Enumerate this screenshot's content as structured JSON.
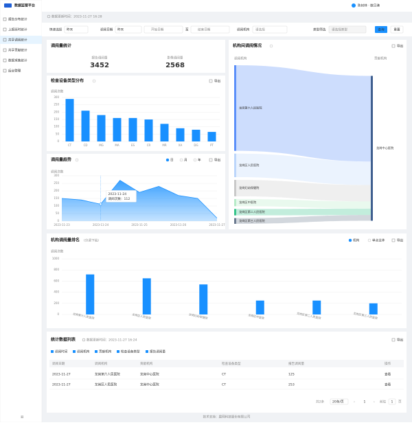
{
  "sidebar": {
    "logo": "数据监管平台",
    "menu": [
      "报告分布统计",
      "上报延时统计",
      "共享调阅统计",
      "共享贡献统计",
      "数据采集统计",
      "后台管理"
    ],
    "active": 2
  },
  "topbar": {
    "user": "陈树林 · 数日港",
    "update_time": "数据更新时间：2023-11-27 16:28"
  },
  "filters": {
    "quick_label": "快速选择",
    "quick_value": "昨天",
    "date_label": "调阅日期",
    "date_value": "昨天",
    "start_placeholder": "开始日期",
    "to": "至",
    "end_placeholder": "结束日期",
    "org_label": "调阅机构",
    "org_placeholder": "请选择",
    "type_label": "类型筛选",
    "type_placeholder": "请选择类型",
    "query": "查询",
    "reset": "重置"
  },
  "summary": {
    "title": "调阅量统计",
    "items": [
      {
        "label": "报告调阅量",
        "value": 3452
      },
      {
        "label": "影像调阅量",
        "value": 2568
      }
    ]
  },
  "chart_data": [
    {
      "type": "bar",
      "title": "检查设备类型分布",
      "export": "导出",
      "y_label": "调阅次数",
      "categories": [
        "CT",
        "CD",
        "MG",
        "MA",
        "ES",
        "CR",
        "MR",
        "XA",
        "DG",
        "PT"
      ],
      "values": [
        290,
        210,
        180,
        160,
        160,
        150,
        120,
        90,
        80,
        65
      ],
      "color": "#1890ff",
      "ylim": [
        0,
        300
      ],
      "yticks": [
        0,
        50,
        100,
        150,
        200,
        250,
        300
      ],
      "grid": true
    },
    {
      "type": "area",
      "title": "调阅量趋势",
      "options": [
        "日",
        "月",
        "年"
      ],
      "export": "导出",
      "y_label": "调阅次数",
      "categories": [
        "2023-11-23",
        null,
        "2023-11-24",
        null,
        "2023-11-25",
        null,
        "2023-11-26",
        null,
        "2023-11-27"
      ],
      "values": [
        150,
        140,
        112,
        270,
        190,
        230,
        170,
        150,
        20
      ],
      "color": "#1890ff",
      "ylim": [
        0,
        300
      ],
      "yticks": [
        0,
        50,
        100,
        150,
        200,
        250,
        300
      ],
      "grid": true,
      "tooltip": {
        "index": 2,
        "date": "2023-11-24",
        "text": "调阅次数：112"
      }
    },
    {
      "type": "sankey",
      "title": "机构间调阅情况",
      "export": "导出",
      "left_label": "调阅机构",
      "right_label": "贡献机构",
      "target": "龙岗中心医院",
      "sources": [
        "龙岗第六人民医院",
        "龙岗区人民医院",
        "龙岗妇幼保健院",
        "龙岗区中医院",
        "龙岗区第二人民医院",
        "龙岗区第三人民医院"
      ],
      "values": [
        1200,
        330,
        230,
        100,
        90,
        80
      ],
      "colors": [
        "#5b8ff9",
        "#bcd6fb",
        "#c9c9c9",
        "#b7ebc8",
        "#36c48a",
        "#6b7a8f"
      ]
    },
    {
      "type": "bar",
      "title": "机构调阅量排名",
      "subtitle": "(分调下钻)",
      "options": [
        "机构",
        "单点主体"
      ],
      "export": "导出",
      "y_label": "调阅次数",
      "categories": [
        "龙岗第六人民医院",
        "龙岗区人民医院",
        "龙岗妇幼保健院",
        "龙岗区中医院",
        "龙岗区第二人民医院",
        "龙岗区第三人民医院"
      ],
      "values": [
        720,
        650,
        540,
        250,
        250,
        200
      ],
      "color": "#1890ff",
      "ylim": [
        0,
        1000
      ],
      "yticks": [
        0,
        200,
        400,
        600,
        800,
        1000
      ],
      "grid": true
    }
  ],
  "table": {
    "title": "统计数据列表",
    "update_time": "数据更新时间：2023-11-27 16:24",
    "export": "导出",
    "toggles": [
      "调阅时间",
      "调阅机构",
      "贡献机构",
      "检查设备类型",
      "报告调阅量"
    ],
    "headers": [
      "调阅日期",
      "调阅机构",
      "贡献机构",
      "检查设备类型",
      "报告调阅量",
      "操作"
    ],
    "rows": [
      [
        "2023-11-27",
        "龙岗第六人民医院",
        "龙岗中心医院",
        "CT",
        125,
        "查看"
      ],
      [
        "2023-11-27",
        "龙岗区人民医院",
        "龙岗中心医院",
        "CT",
        253,
        "查看"
      ]
    ],
    "pagination": {
      "total": "共2条",
      "page_size": "20条/页",
      "page": "1",
      "goto": "前往",
      "goto_value": "1",
      "unit": "页"
    }
  },
  "footer": "技术支持：晨网科技股份有限公司"
}
